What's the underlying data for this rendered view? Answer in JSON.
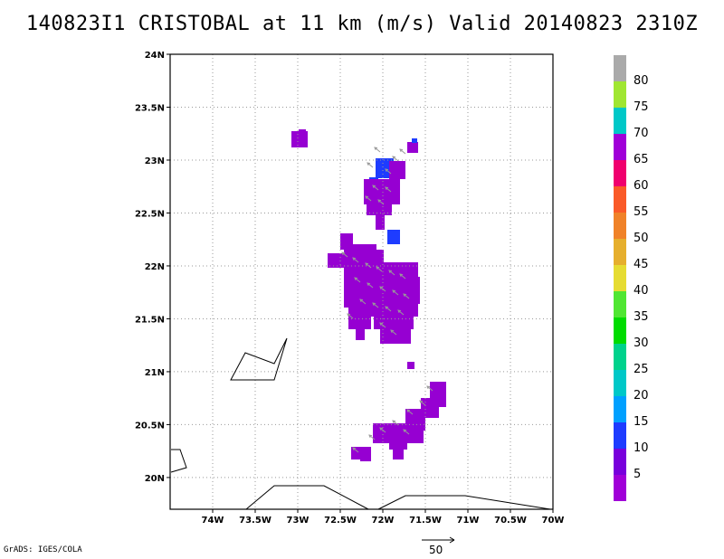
{
  "title": "140823I1 CRISTOBAL at 11 km (m/s) Valid 20140823 2310Z",
  "footer": "GrADS: IGES/COLA",
  "scale": {
    "label": "50"
  },
  "map": {
    "lon_range": [
      -74.5,
      -70.0
    ],
    "lat_range": [
      19.7,
      24.0
    ],
    "lon_ticks": [
      "74W",
      "73.5W",
      "73W",
      "72.5W",
      "72W",
      "71.5W",
      "71W",
      "70.5W",
      "70W"
    ],
    "lat_ticks": [
      "24N",
      "23.5N",
      "23N",
      "22.5N",
      "22N",
      "21.5N",
      "21N",
      "20.5N",
      "20N"
    ],
    "grid": true
  },
  "colorbar": {
    "labels": [
      "5",
      "10",
      "15",
      "20",
      "25",
      "30",
      "35",
      "40",
      "45",
      "50",
      "55",
      "60",
      "65",
      "70",
      "75",
      "80"
    ],
    "colors": [
      "#a000d8",
      "#7800dc",
      "#1e3cff",
      "#00a0ff",
      "#00c8c8",
      "#00d28c",
      "#00dc00",
      "#50e632",
      "#e6dc32",
      "#e6af2d",
      "#f08228",
      "#fa5a28",
      "#f0006e",
      "#a000d8",
      "#00c8c8",
      "#a0e632",
      "#aaaaaa"
    ]
  },
  "colors": {
    "wind_fill": "#9600d2",
    "high_fill": "#1e3cff",
    "vector": "#999999"
  }
}
